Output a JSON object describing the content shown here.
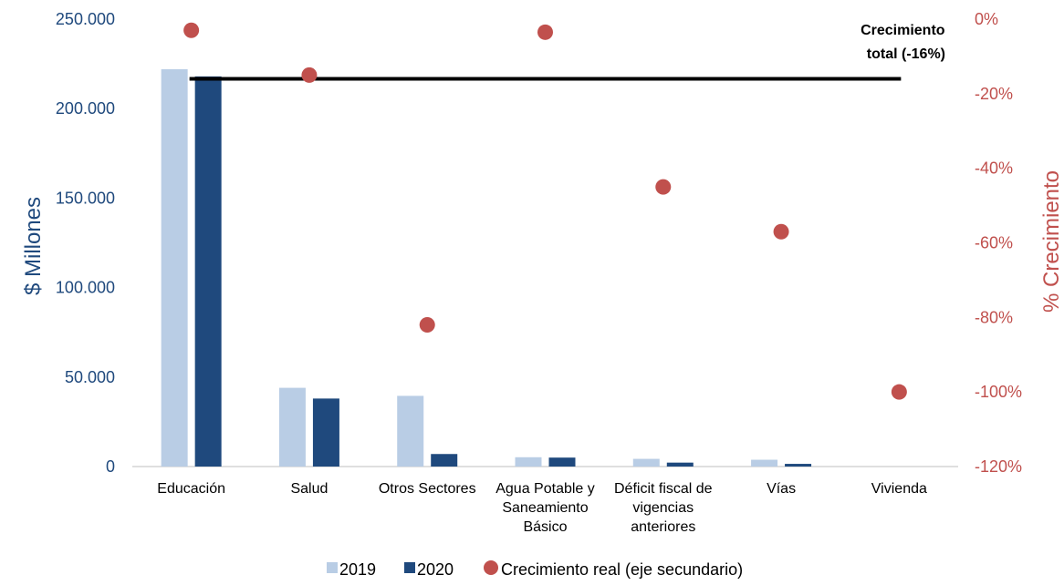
{
  "chart_data": {
    "type": "bar",
    "categories": [
      [
        "Educación"
      ],
      [
        "Salud"
      ],
      [
        "Otros Sectores"
      ],
      [
        "Agua Potable y",
        "Saneamiento",
        "Básico"
      ],
      [
        "Déficit fiscal de",
        "vigencias",
        "anteriores"
      ],
      [
        "Vías"
      ],
      [
        "Vivienda"
      ]
    ],
    "series": [
      {
        "name": "2019",
        "axis": "left",
        "kind": "bar",
        "color": "#B9CDE5",
        "values": [
          222000,
          44000,
          39500,
          5200,
          4300,
          3800,
          0
        ]
      },
      {
        "name": "2020",
        "axis": "left",
        "kind": "bar",
        "color": "#1F497D",
        "values": [
          218000,
          38000,
          7000,
          5000,
          2200,
          1500,
          0
        ]
      },
      {
        "name": "Crecimiento real (eje secundario)",
        "axis": "right",
        "kind": "scatter",
        "color": "#C0504D",
        "values": [
          -3,
          -15,
          -82,
          -3.5,
          -45,
          -57,
          -100
        ]
      }
    ],
    "ylabel": "$ Millones",
    "ylim": [
      0,
      250000
    ],
    "yticks": [
      "0",
      "50.000",
      "100.000",
      "150.000",
      "200.000",
      "250.000"
    ],
    "ytick_values": [
      0,
      50000,
      100000,
      150000,
      200000,
      250000
    ],
    "y2label": "% Crecimiento",
    "y2lim": [
      -120,
      0
    ],
    "y2ticks": [
      "-120%",
      "-100%",
      "-80%",
      "-60%",
      "-40%",
      "-20%",
      "0%"
    ],
    "y2tick_values": [
      -120,
      -100,
      -80,
      -60,
      -40,
      -20,
      0
    ],
    "reference_line": {
      "value": -16,
      "axis": "right",
      "color": "#000000"
    },
    "annotation": [
      "Crecimiento",
      "total (-16%)"
    ],
    "legend_position": "bottom",
    "grid": false
  }
}
